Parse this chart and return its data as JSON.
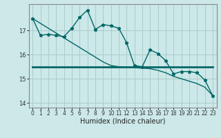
{
  "xlabel": "Humidex (Indice chaleur)",
  "background_color": "#cce8e8",
  "grid_color": "#aacccc",
  "line_color": "#006666",
  "x": [
    0,
    1,
    2,
    3,
    4,
    5,
    6,
    7,
    8,
    9,
    10,
    11,
    12,
    13,
    14,
    15,
    16,
    17,
    18,
    19,
    20,
    21,
    22,
    23
  ],
  "y_main": [
    17.5,
    16.8,
    16.85,
    16.8,
    16.75,
    17.1,
    17.55,
    17.85,
    17.05,
    17.25,
    17.2,
    17.1,
    16.5,
    15.55,
    15.5,
    16.2,
    16.05,
    15.75,
    15.2,
    15.3,
    15.3,
    15.25,
    14.95,
    14.3
  ],
  "y_linear": [
    17.5,
    17.3,
    17.1,
    16.9,
    16.7,
    16.5,
    16.3,
    16.1,
    15.9,
    15.7,
    15.55,
    15.5,
    15.48,
    15.46,
    15.44,
    15.42,
    15.35,
    15.25,
    15.1,
    15.0,
    14.9,
    14.8,
    14.65,
    14.3
  ],
  "y_mean": [
    15.5,
    15.5,
    15.5,
    15.5,
    15.5,
    15.5,
    15.5,
    15.5,
    15.5,
    15.5,
    15.5,
    15.5,
    15.5,
    15.5,
    15.5,
    15.5,
    15.5,
    15.5,
    15.5,
    15.5,
    15.5,
    15.5,
    15.5,
    15.5
  ],
  "ylim": [
    13.8,
    18.1
  ],
  "xlim": [
    -0.5,
    23.5
  ],
  "yticks": [
    14,
    15,
    16,
    17
  ],
  "xticks": [
    0,
    1,
    2,
    3,
    4,
    5,
    6,
    7,
    8,
    9,
    10,
    11,
    12,
    13,
    14,
    15,
    16,
    17,
    18,
    19,
    20,
    21,
    22,
    23
  ],
  "ylabel_fontsize": 6,
  "xlabel_fontsize": 7,
  "tick_labelsize": 6
}
